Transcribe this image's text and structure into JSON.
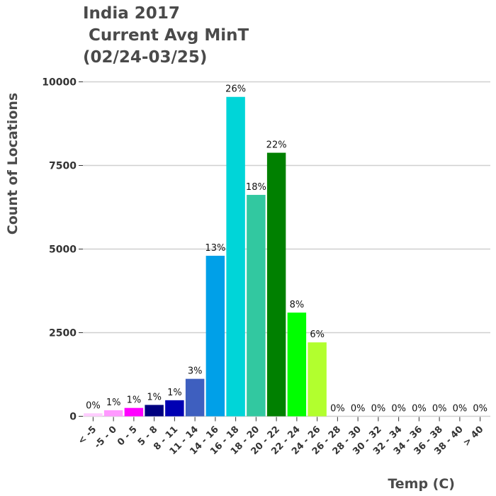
{
  "chart_data": {
    "type": "bar",
    "title_lines": [
      "India 2017",
      " Current Avg MinT",
      "(02/24-03/25)"
    ],
    "xlabel": "Temp (C)",
    "ylabel": "Count of Locations",
    "ylim": [
      0,
      10000
    ],
    "yticks": [
      0,
      2500,
      5000,
      7500,
      10000
    ],
    "grid": true,
    "categories": [
      "< -5",
      "-5 - 0",
      "0 - 5",
      "5 - 8",
      "8 - 11",
      "11 - 14",
      "14 - 16",
      "16 - 18",
      "18 - 20",
      "20 - 22",
      "22 - 24",
      "24 - 26",
      "26 - 28",
      "28 - 30",
      "30 - 32",
      "32 - 34",
      "34 - 36",
      "36 - 38",
      "38 - 40",
      "> 40"
    ],
    "values": [
      90,
      180,
      250,
      340,
      480,
      1120,
      4800,
      9550,
      6620,
      7880,
      3100,
      2210,
      0,
      0,
      0,
      0,
      0,
      0,
      0,
      0
    ],
    "labels": [
      "0%",
      "1%",
      "1%",
      "1%",
      "1%",
      "3%",
      "13%",
      "26%",
      "18%",
      "22%",
      "8%",
      "6%",
      "0%",
      "0%",
      "0%",
      "0%",
      "0%",
      "0%",
      "0%",
      "0%"
    ],
    "colors": [
      "#ffccff",
      "#ff99ff",
      "#ff00ff",
      "#000080",
      "#0000b3",
      "#3e5fbf",
      "#00a0e8",
      "#00d5d8",
      "#32c8a0",
      "#008000",
      "#00ff00",
      "#b2ff2e",
      "#ffcc00",
      "#ff9900",
      "#ff6600",
      "#ff3300",
      "#cc0000",
      "#990000",
      "#660000",
      "#330000"
    ]
  }
}
